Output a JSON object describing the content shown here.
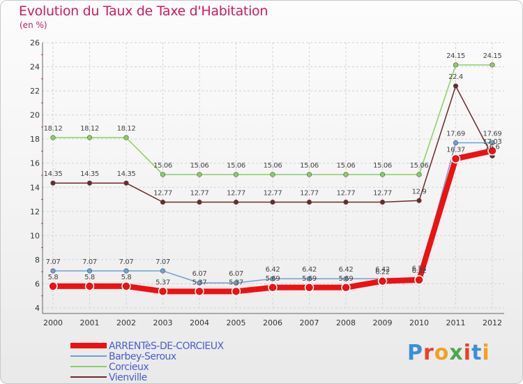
{
  "title": "Evolution du Taux de Taxe d'Habitation",
  "unit": "(en %)",
  "logo": {
    "text": "Proxiti",
    "letter_colors": [
      "#3a8fd8",
      "#e8402a",
      "#f2a024",
      "#4aa84a",
      "#e8402a",
      "#3a8fd8",
      "#f2a024"
    ]
  },
  "chart_data": {
    "type": "line",
    "categories": [
      "2000",
      "2001",
      "2002",
      "2003",
      "2004",
      "2005",
      "2006",
      "2007",
      "2008",
      "2009",
      "2010",
      "2011",
      "2012"
    ],
    "ylim": [
      4,
      26
    ],
    "yticks": [
      "4",
      "6",
      "8",
      "10",
      "12",
      "14",
      "16",
      "18",
      "20",
      "22",
      "24",
      "26"
    ],
    "grid": true,
    "legend_position": "bottom-left",
    "series": [
      {
        "name": "Vienville",
        "color": "#6b2a2a",
        "values": [
          14.35,
          14.35,
          14.35,
          12.77,
          12.77,
          12.77,
          12.77,
          12.77,
          12.77,
          12.77,
          12.9,
          22.4,
          16.6
        ],
        "labels": [
          "14.35",
          "14.35",
          "14.35",
          "12.77",
          "12.77",
          "12.77",
          "12.77",
          "12.77",
          "12.77",
          "12.77",
          "12.9",
          "22.4",
          "16.6"
        ]
      },
      {
        "name": "Corcieux",
        "color": "#88d060",
        "values": [
          18.12,
          18.12,
          18.12,
          15.06,
          15.06,
          15.06,
          15.06,
          15.06,
          15.06,
          15.06,
          15.06,
          24.15,
          24.15
        ],
        "labels": [
          "18.12",
          "18.12",
          "18.12",
          "15.06",
          "15.06",
          "15.06",
          "15.06",
          "15.06",
          "15.06",
          "15.06",
          "15.06",
          "24.15",
          "24.15"
        ]
      },
      {
        "name": "Barbey-Seroux",
        "color": "#6fa0d0",
        "values": [
          7.07,
          7.07,
          7.07,
          7.07,
          6.07,
          6.07,
          6.42,
          6.42,
          6.42,
          6.42,
          6.52,
          17.69,
          17.69
        ],
        "labels": [
          "7.07",
          "7.07",
          "7.07",
          "7.07",
          "6.07",
          "6.07",
          "6.42",
          "6.42",
          "6.42",
          "6.42",
          "6.52",
          "17.69",
          "17.69"
        ]
      },
      {
        "name": "ARRENTèS-DE-CORCIEUX",
        "color": "#ee1111",
        "values": [
          5.8,
          5.8,
          5.8,
          5.37,
          5.37,
          5.37,
          5.69,
          5.69,
          5.69,
          6.22,
          6.32,
          16.37,
          17.03
        ],
        "labels": [
          "5.8",
          "5.8",
          "5.8",
          "5.37",
          "5.37",
          "5.37",
          "5.69",
          "5.69",
          "5.69",
          "6.22",
          "6.32",
          "16.37",
          "17.03"
        ]
      }
    ]
  }
}
